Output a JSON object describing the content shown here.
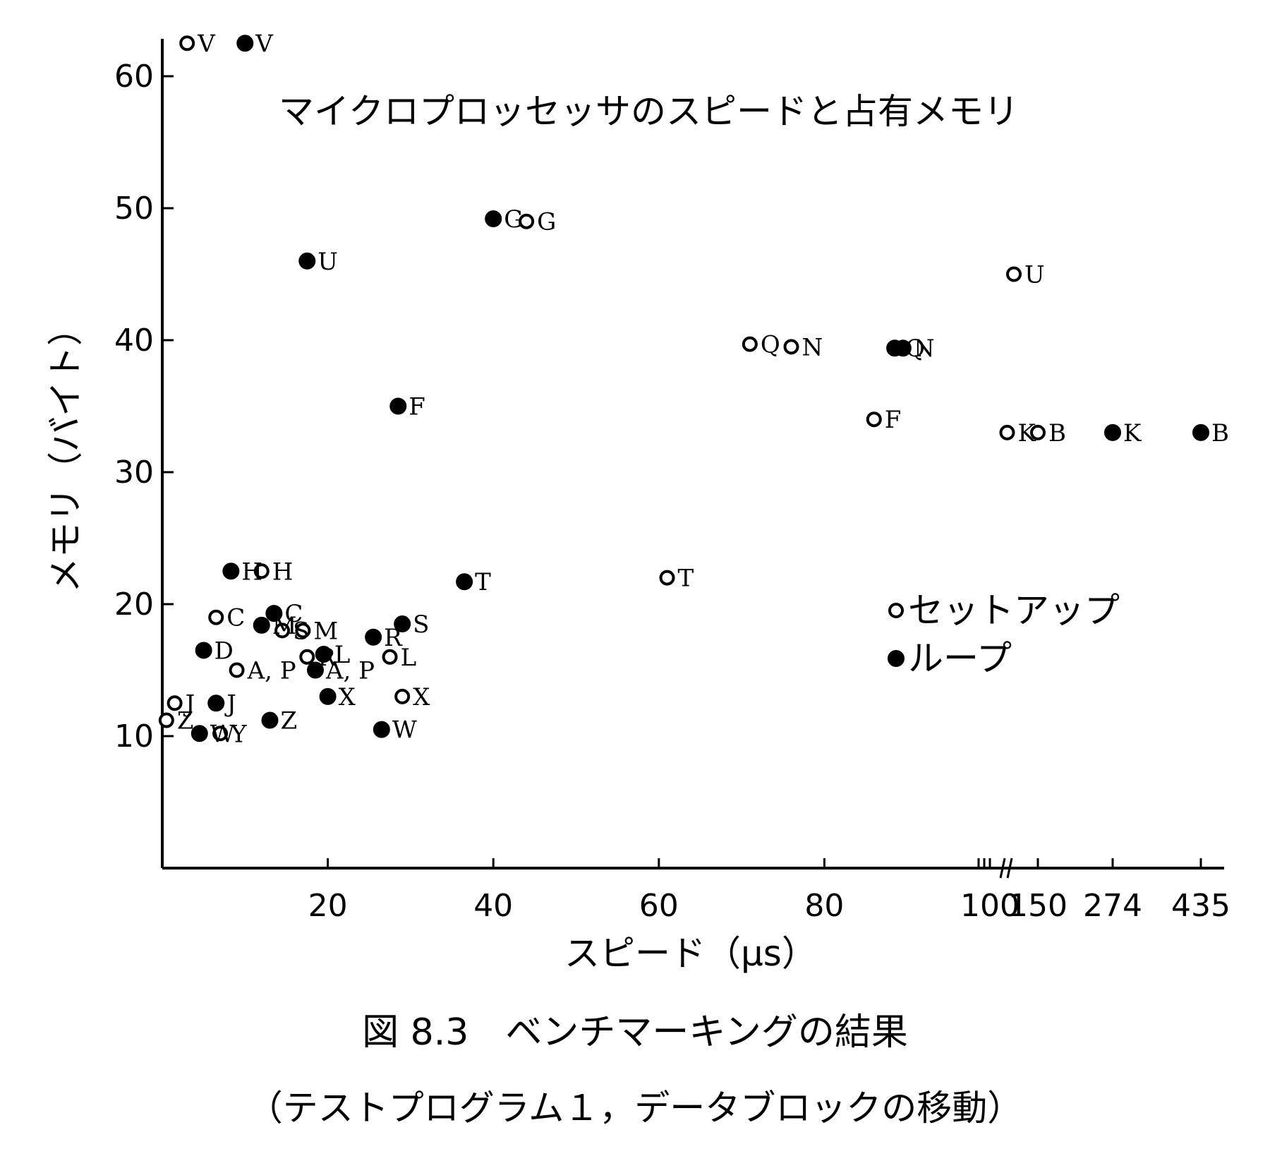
{
  "chart_data": {
    "type": "scatter",
    "title": "マイクロプロッセッサのスピードと占有メモリ",
    "xlabel": "スピード（μs）",
    "ylabel": "メモリ（バイト）",
    "xlim": [
      0,
      435
    ],
    "ylim": [
      0,
      63
    ],
    "x_ticks": [
      {
        "value": 20,
        "label": "20"
      },
      {
        "value": 40,
        "label": "40"
      },
      {
        "value": 60,
        "label": "60"
      },
      {
        "value": 80,
        "label": "80"
      },
      {
        "value": 100,
        "label": "100"
      },
      {
        "value": 150,
        "label": "150"
      },
      {
        "value": 274,
        "label": "274"
      },
      {
        "value": 435,
        "label": "435"
      }
    ],
    "y_ticks": [
      {
        "value": 10,
        "label": "10"
      },
      {
        "value": 20,
        "label": "20"
      },
      {
        "value": 30,
        "label": "30"
      },
      {
        "value": 40,
        "label": "40"
      },
      {
        "value": 50,
        "label": "50"
      },
      {
        "value": 60,
        "label": "60"
      }
    ],
    "axis_break": "x axis between 100 and 150",
    "legend": {
      "placement": "right",
      "items": [
        {
          "marker": "open-circle",
          "label": "セットアップ"
        },
        {
          "marker": "filled-circle",
          "label": "ループ"
        }
      ]
    },
    "series": [
      {
        "name": "セットアップ",
        "marker": "open-circle",
        "points": [
          {
            "label": "V",
            "x": 3,
            "y": 62.5
          },
          {
            "label": "G",
            "x": 44,
            "y": 49
          },
          {
            "label": "U",
            "x": 125,
            "y": 45
          },
          {
            "label": "Q",
            "x": 71,
            "y": 39.7
          },
          {
            "label": "N",
            "x": 76,
            "y": 39.5
          },
          {
            "label": "F",
            "x": 86,
            "y": 34
          },
          {
            "label": "K",
            "x": 118,
            "y": 33
          },
          {
            "label": "B",
            "x": 150,
            "y": 33
          },
          {
            "label": "T",
            "x": 61,
            "y": 22
          },
          {
            "label": "H",
            "x": 12,
            "y": 22.5
          },
          {
            "label": "C",
            "x": 6.5,
            "y": 19
          },
          {
            "label": "M",
            "x": 17,
            "y": 18
          },
          {
            "label": "S",
            "x": 14.5,
            "y": 18
          },
          {
            "label": "R",
            "x": 17.5,
            "y": 16
          },
          {
            "label": "L",
            "x": 27.5,
            "y": 16
          },
          {
            "label": "A, P",
            "x": 9,
            "y": 15
          },
          {
            "label": "X",
            "x": 29,
            "y": 13
          },
          {
            "label": "J",
            "x": 1.5,
            "y": 12.5
          },
          {
            "label": "Y",
            "x": 7,
            "y": 10.2
          },
          {
            "label": "Z",
            "x": 0.5,
            "y": 11.2
          }
        ]
      },
      {
        "name": "ループ",
        "marker": "filled-circle",
        "points": [
          {
            "label": "V",
            "x": 10,
            "y": 62.5
          },
          {
            "label": "G",
            "x": 40,
            "y": 49.2
          },
          {
            "label": "U",
            "x": 17.5,
            "y": 46
          },
          {
            "label": "Q",
            "x": 88.5,
            "y": 39.4
          },
          {
            "label": "N",
            "x": 89.5,
            "y": 39.4
          },
          {
            "label": "F",
            "x": 28.5,
            "y": 35
          },
          {
            "label": "K",
            "x": 274,
            "y": 33
          },
          {
            "label": "B",
            "x": 435,
            "y": 33
          },
          {
            "label": "T",
            "x": 36.5,
            "y": 21.7
          },
          {
            "label": "H",
            "x": 8.3,
            "y": 22.5
          },
          {
            "label": "C",
            "x": 13.5,
            "y": 19.3
          },
          {
            "label": "M",
            "x": 12,
            "y": 18.4
          },
          {
            "label": "S",
            "x": 29,
            "y": 18.5
          },
          {
            "label": "R",
            "x": 25.5,
            "y": 17.5
          },
          {
            "label": "L",
            "x": 19.5,
            "y": 16.2
          },
          {
            "label": "D",
            "x": 5,
            "y": 16.5
          },
          {
            "label": "A, P",
            "x": 18.5,
            "y": 15
          },
          {
            "label": "X",
            "x": 20,
            "y": 13
          },
          {
            "label": "J",
            "x": 6.5,
            "y": 12.5
          },
          {
            "label": "Z",
            "x": 13,
            "y": 11.2
          },
          {
            "label": "W",
            "x": 26.5,
            "y": 10.5
          },
          {
            "label": "W",
            "x": 4.5,
            "y": 10.2
          }
        ]
      }
    ]
  },
  "caption": {
    "figure": "図 8.3　ベンチマーキングの結果",
    "sub": "（テストプログラム１，データブロックの移動）"
  },
  "colors": {
    "ink": "#000000",
    "paper": "#ffffff"
  }
}
